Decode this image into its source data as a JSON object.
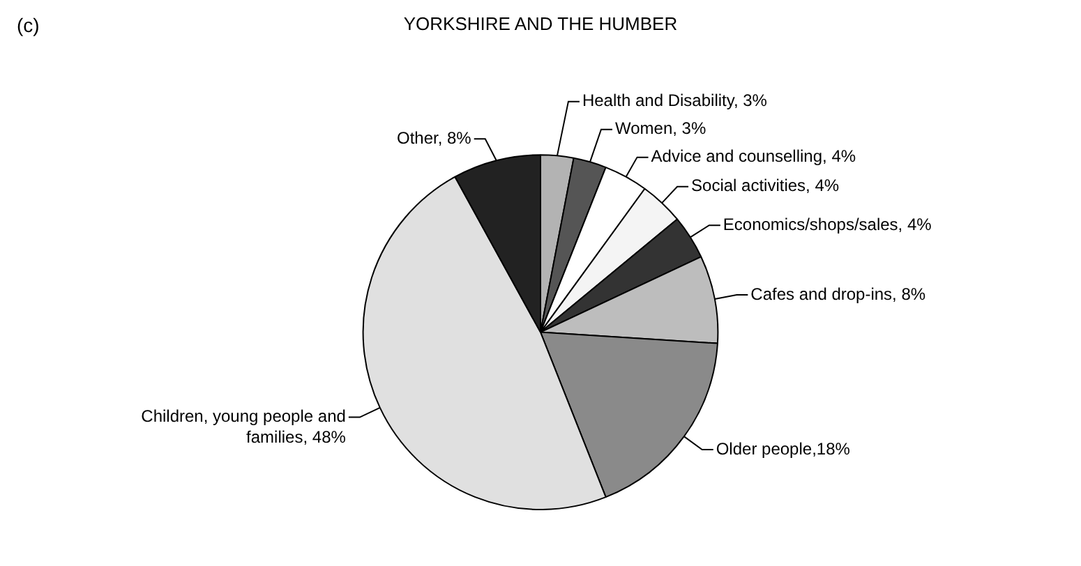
{
  "chart_data": {
    "type": "pie",
    "title": "YORKSHIRE AND THE HUMBER",
    "annotations": [
      "(c)"
    ],
    "categories": [
      "Health and Disability, 3%",
      "Women, 3%",
      "Advice and counselling, 4%",
      "Social activities, 4%",
      "Economics/shops/sales, 4%",
      "Cafes and drop-ins, 8%",
      "Older people,18%",
      "Children, young people and families, 48%",
      "Other, 8%"
    ],
    "values": [
      3,
      3,
      4,
      4,
      4,
      8,
      18,
      48,
      8
    ],
    "colors": [
      "#b3b3b3",
      "#555555",
      "#ffffff",
      "#f4f4f4",
      "#333333",
      "#bdbdbd",
      "#8a8a8a",
      "#e0e0e0",
      "#222222"
    ],
    "legend": false
  }
}
